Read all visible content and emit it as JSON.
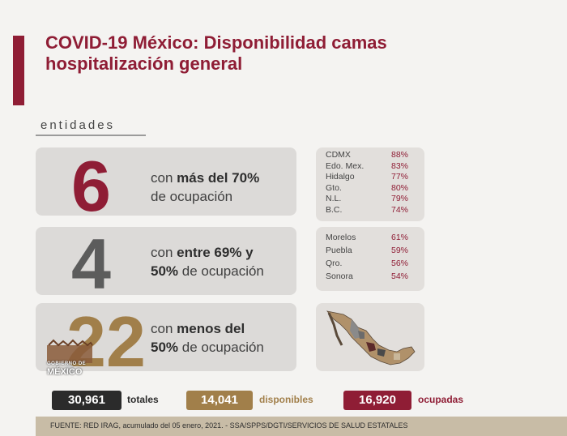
{
  "title_line1": "COVID-19 México: Disponibilidad camas",
  "title_line2": "hospitalización general",
  "section_label": "entidades",
  "groups": [
    {
      "count": "6",
      "desc_plain1": "con ",
      "desc_bold1": "más del 70%",
      "desc_plain2": "de ocupación",
      "color": "#8f1d35",
      "states": [
        {
          "name": "CDMX",
          "value": "88%"
        },
        {
          "name": "Edo. Mex.",
          "value": "83%"
        },
        {
          "name": "Hidalgo",
          "value": "77%"
        },
        {
          "name": "Gto.",
          "value": "80%"
        },
        {
          "name": "N.L.",
          "value": "79%"
        },
        {
          "name": "B.C.",
          "value": "74%"
        }
      ]
    },
    {
      "count": "4",
      "desc_plain1": "con ",
      "desc_bold1": "entre 69% y",
      "desc_bold2": "50%",
      "desc_plain2": " de ocupación",
      "color": "#5c5c5c",
      "states": [
        {
          "name": "Morelos",
          "value": "61%"
        },
        {
          "name": "Puebla",
          "value": "59%"
        },
        {
          "name": "Qro.",
          "value": "56%"
        },
        {
          "name": "Sonora",
          "value": "54%"
        }
      ]
    },
    {
      "count": "22",
      "desc_plain1": "con ",
      "desc_bold1": "menos del",
      "desc_bold2": "50%",
      "desc_plain2": " de ocupación",
      "color": "#a17f4a"
    }
  ],
  "logo": {
    "line1": "GOBIERNO DE",
    "line2": "MÉXICO"
  },
  "totals": [
    {
      "value": "30,961",
      "label": "totales",
      "color": "#2b2b2b"
    },
    {
      "value": "14,041",
      "label": "disponibles",
      "color": "#a17f4a"
    },
    {
      "value": "16,920",
      "label": "ocupadas",
      "color": "#8f1d35"
    }
  ],
  "footer": "FUENTE: RED IRAG, acumulado del 05 enero, 2021. -  SSA/SPPS/DGTI/SERVICIOS DE SALUD ESTATALES"
}
